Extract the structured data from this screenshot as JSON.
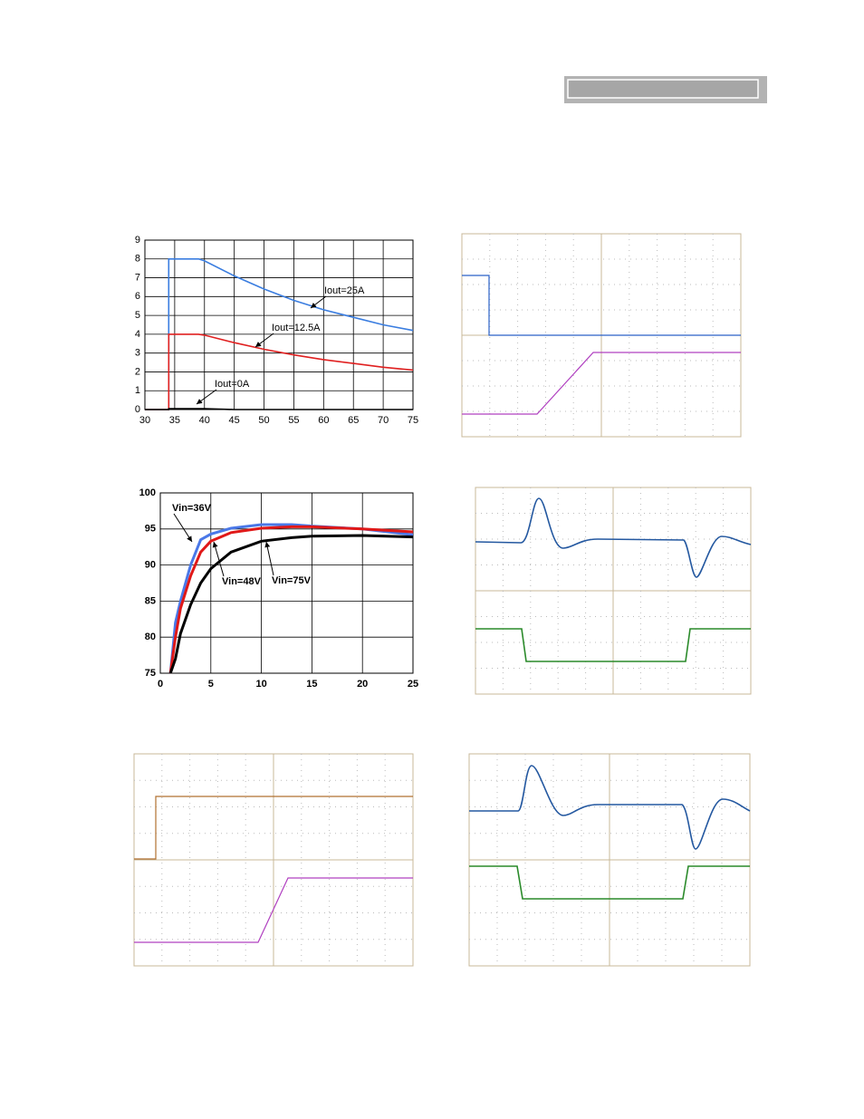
{
  "chart_data": [
    {
      "type": "line",
      "x": [
        30,
        34,
        34,
        39,
        40,
        45,
        50,
        55,
        60,
        65,
        70,
        75
      ],
      "series": [
        {
          "name": "Iout=25A",
          "color": "#3a7de0",
          "values": [
            0,
            0,
            8,
            8,
            7.9,
            7.1,
            6.4,
            5.8,
            5.3,
            4.9,
            4.5,
            4.2
          ]
        },
        {
          "name": "Iout=12.5A",
          "color": "#e02020",
          "values": [
            0,
            0,
            4,
            4,
            3.95,
            3.55,
            3.2,
            2.9,
            2.65,
            2.45,
            2.25,
            2.1
          ]
        },
        {
          "name": "Iout=0A",
          "color": "#000000",
          "values": [
            0,
            0,
            0.05,
            0.05,
            0.05,
            0,
            0,
            0,
            0,
            0,
            0,
            0
          ]
        }
      ],
      "xlim": [
        30,
        75
      ],
      "xticks": [
        30,
        35,
        40,
        45,
        50,
        55,
        60,
        65,
        70,
        75
      ],
      "ylim": [
        0,
        9
      ],
      "yticks": [
        0,
        1,
        2,
        3,
        4,
        5,
        6,
        7,
        8,
        9
      ],
      "grid": true
    },
    {
      "type": "line",
      "x": [
        1,
        1.5,
        2,
        3,
        4,
        5,
        7,
        10,
        13,
        15,
        20,
        25
      ],
      "series": [
        {
          "name": "Vin=36V",
          "color": "#4a78e8",
          "values": [
            75,
            82,
            85,
            90,
            93.5,
            94.3,
            95.1,
            95.6,
            95.6,
            95.4,
            95,
            94.2
          ]
        },
        {
          "name": "Vin=48V",
          "color": "#e01818",
          "values": [
            75,
            80,
            84,
            88.5,
            91.8,
            93.3,
            94.5,
            95.1,
            95.3,
            95.3,
            95,
            94.6
          ]
        },
        {
          "name": "Vin=75V",
          "color": "#000000",
          "values": [
            75,
            77,
            80.5,
            84.5,
            87.5,
            89.5,
            91.8,
            93.3,
            93.8,
            94,
            94.1,
            93.9
          ]
        }
      ],
      "xlim": [
        0,
        25
      ],
      "xticks": [
        0,
        5,
        10,
        15,
        20,
        25
      ],
      "ylim": [
        75,
        100
      ],
      "yticks": [
        75,
        80,
        85,
        90,
        95,
        100
      ],
      "grid": true
    }
  ]
}
